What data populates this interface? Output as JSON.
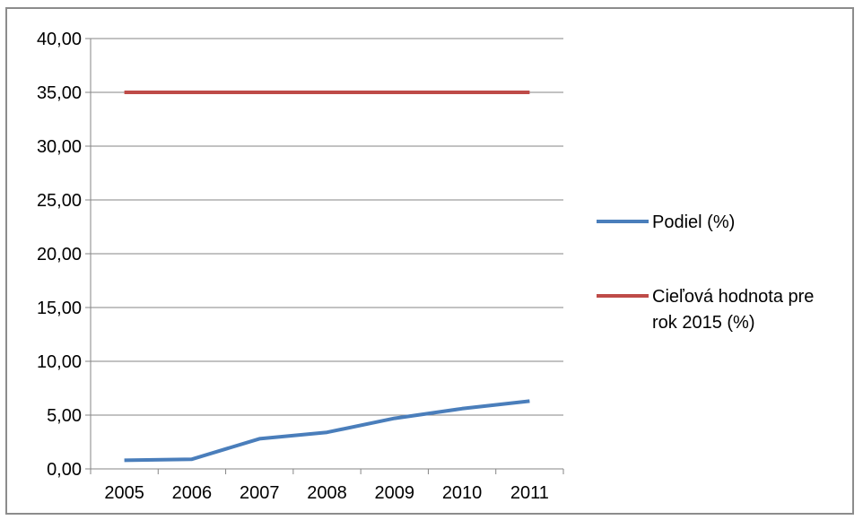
{
  "chart_data": {
    "type": "line",
    "categories": [
      "2005",
      "2006",
      "2007",
      "2008",
      "2009",
      "2010",
      "2011"
    ],
    "series": [
      {
        "name": "Podiel (%)",
        "color": "#4a7ebb",
        "values": [
          0.8,
          0.9,
          2.8,
          3.4,
          4.7,
          5.6,
          6.3
        ]
      },
      {
        "name": "Cieľová hodnota pre rok 2015 (%)",
        "color": "#be4b48",
        "values": [
          35.0,
          35.0,
          35.0,
          35.0,
          35.0,
          35.0,
          35.0
        ]
      }
    ],
    "ylim": [
      0,
      40
    ],
    "yticks": [
      "0,00",
      "5,00",
      "10,00",
      "15,00",
      "20,00",
      "25,00",
      "30,00",
      "35,00",
      "40,00"
    ],
    "grid": true,
    "legend_position": "right",
    "gridline_color": "#868686"
  }
}
